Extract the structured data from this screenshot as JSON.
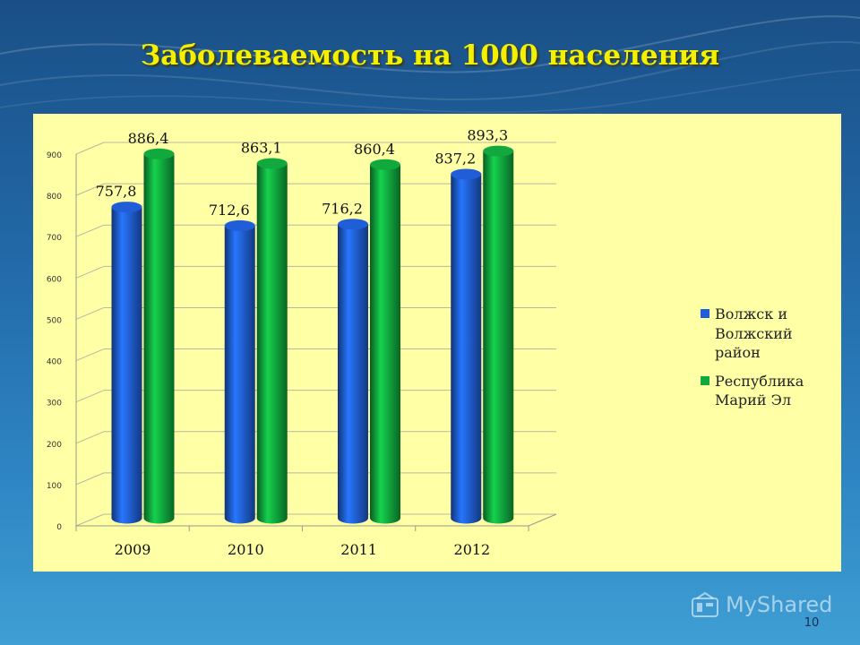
{
  "slide": {
    "title": "Заболеваемость на 1000 населения",
    "page_number": "10",
    "watermark": "MyShared"
  },
  "colors": {
    "background_top": "#1a4f86",
    "background_bottom": "#3f9fd4",
    "title": "#f4f000",
    "chart_panel": "#ffffa6",
    "series_1": "#1f5ed6",
    "series_2": "#11a83e"
  },
  "chart_data": {
    "type": "bar",
    "variant": "3d-cylinder",
    "title": "",
    "xlabel": "",
    "ylabel": "",
    "categories": [
      "2009",
      "2010",
      "2011",
      "2012"
    ],
    "series": [
      {
        "name": "Волжск и Волжский район",
        "values": [
          757.8,
          712.6,
          716.2,
          837.2
        ],
        "labels": [
          "757,8",
          "712,6",
          "716,2",
          "837,2"
        ],
        "color": "#1f5ed6"
      },
      {
        "name": "Республика Марий Эл",
        "values": [
          886.4,
          863.1,
          860.4,
          893.3
        ],
        "labels": [
          "886,4",
          "863,1",
          "860,4",
          "893,3"
        ],
        "color": "#11a83e"
      }
    ],
    "ylim": [
      0,
      900
    ],
    "yticks": [
      "0",
      "100",
      "200",
      "300",
      "400",
      "500",
      "600",
      "700",
      "800",
      "900"
    ],
    "grid": true,
    "legend_position": "right"
  }
}
